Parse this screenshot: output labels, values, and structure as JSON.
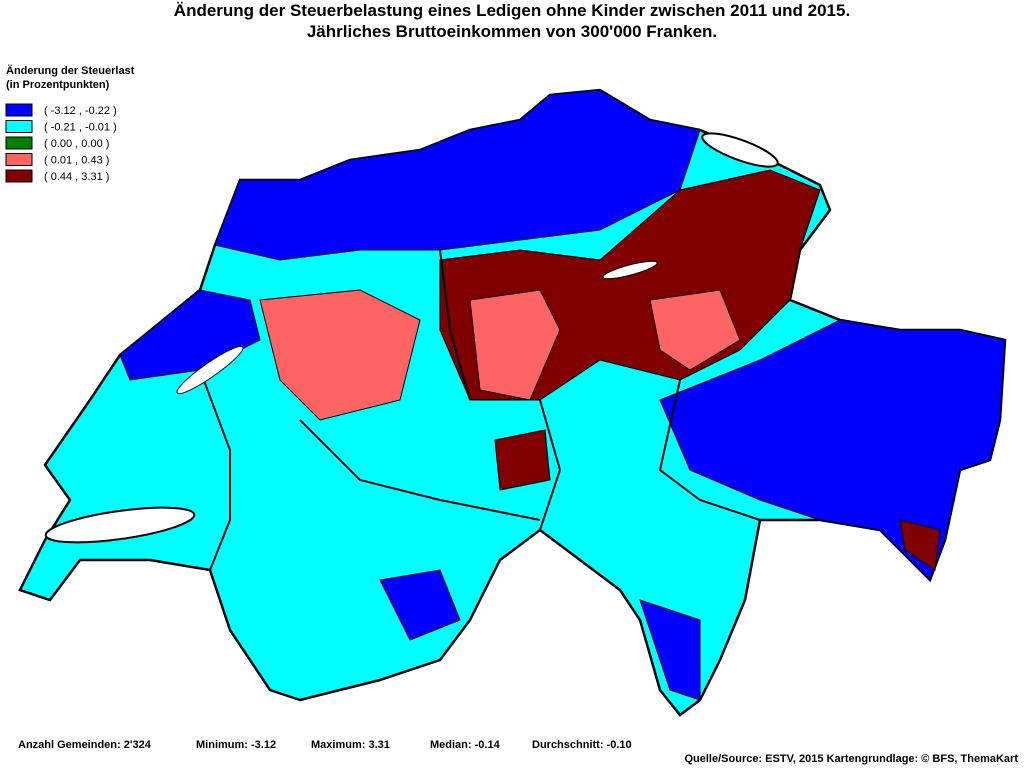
{
  "header": {
    "title_lines": [
      "Änderung der Steuerbelastung eines Ledigen ohne Kinder zwischen 2011 und 2015.",
      "Jährliches Bruttoeinkommen von 300'000 Franken."
    ]
  },
  "legend": {
    "title_lines": [
      "Änderung der Steuerlast",
      "(in Prozentpunkten)"
    ],
    "entries": [
      {
        "label": "( -3.12 , -0.22 )",
        "color": "#0000ff"
      },
      {
        "label": "( -0.21 , -0.01 )",
        "color": "#00ffff"
      },
      {
        "label": "( 0.00 , 0.00 )",
        "color": "#008000"
      },
      {
        "label": "( 0.01 , 0.43 )",
        "color": "#ff6464"
      },
      {
        "label": "( 0.44 , 3.31 )",
        "color": "#800000"
      }
    ]
  },
  "footer": {
    "stats": [
      "Anzahl Gemeinden: 2'324",
      "Minimum: -3.12",
      "Maximum: 3.31",
      "Median: -0.14",
      "Durchschnitt: -0.10"
    ],
    "source": "Quelle/Source: ESTV, 2015 Kartengrundlage: © BFS, ThemaKart"
  }
}
